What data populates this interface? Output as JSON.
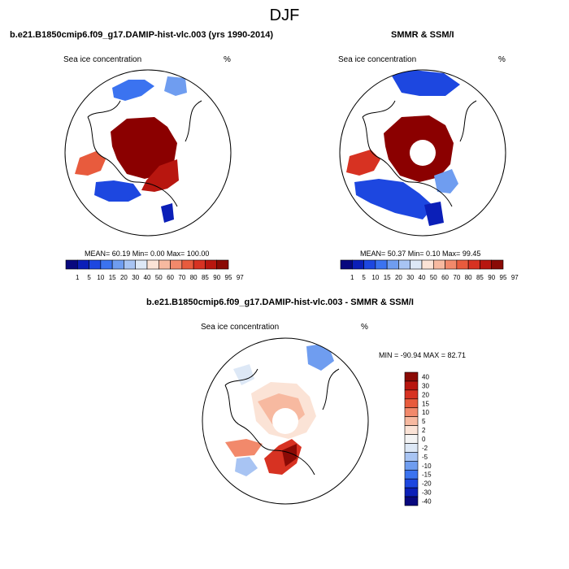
{
  "main_title": "DJF",
  "colors": {
    "hbar": [
      "#08087e",
      "#0b1fb8",
      "#1d47e0",
      "#3b73f0",
      "#6f9df0",
      "#a8c4f3",
      "#dde8f6",
      "#fbe3d6",
      "#f7b9a0",
      "#f2896b",
      "#e85b3d",
      "#d73222",
      "#b8160f",
      "#8a0a05"
    ],
    "vbar": [
      "#8a0a05",
      "#b8160f",
      "#d73222",
      "#e85b3d",
      "#f2896b",
      "#f7b9a0",
      "#fbe3d6",
      "#f4f4f4",
      "#dde8f6",
      "#a8c4f3",
      "#6f9df0",
      "#3b73f0",
      "#1d47e0",
      "#0b1fb8",
      "#08087e"
    ],
    "sea_ice_high": "#8b0000",
    "land_line": "#000000"
  },
  "panels": [
    {
      "title": "b.e21.B1850cmip6.f09_g17.DAMIP-hist-vlc.003 (yrs 1990-2014)",
      "left_label": "Sea ice concentration",
      "right_label": "%",
      "stats": "MEAN=  60.19  Min=   0.00  Max= 100.00",
      "ticks": [
        "1",
        "5",
        "10",
        "15",
        "20",
        "30",
        "40",
        "50",
        "60",
        "70",
        "80",
        "85",
        "90",
        "95",
        "97"
      ]
    },
    {
      "title": "SMMR & SSM/I",
      "left_label": "Sea ice concentration",
      "right_label": "%",
      "stats": "MEAN=  50.37  Min=   0.10  Max=  99.45",
      "ticks": [
        "1",
        "5",
        "10",
        "15",
        "20",
        "30",
        "40",
        "50",
        "60",
        "70",
        "80",
        "85",
        "90",
        "95",
        "97"
      ]
    }
  ],
  "diff_panel": {
    "title": "b.e21.B1850cmip6.f09_g17.DAMIP-hist-vlc.003 - SMMR & SSM/I",
    "left_label": "Sea ice concentration",
    "right_label": "%",
    "minmax": "MIN = -90.94  MAX =  82.71",
    "ticks": [
      "40",
      "30",
      "20",
      "15",
      "10",
      "5",
      "2",
      "0",
      "-2",
      "-5",
      "-10",
      "-15",
      "-20",
      "-30",
      "-40"
    ]
  },
  "chart_data": {
    "type": "heatmap",
    "title": "DJF",
    "season": "DJF",
    "variable": "Sea ice concentration",
    "units": "%",
    "projection": "North polar stereographic",
    "maps": [
      {
        "name": "b.e21.B1850cmip6.f09_g17.DAMIP-hist-vlc.003 (yrs 1990-2014)",
        "mean": 60.19,
        "min": 0.0,
        "max": 100.0,
        "contour_levels": [
          1,
          5,
          10,
          15,
          20,
          30,
          40,
          50,
          60,
          70,
          80,
          85,
          90,
          95,
          97
        ]
      },
      {
        "name": "SMMR & SSM/I",
        "mean": 50.37,
        "min": 0.1,
        "max": 99.45,
        "contour_levels": [
          1,
          5,
          10,
          15,
          20,
          30,
          40,
          50,
          60,
          70,
          80,
          85,
          90,
          95,
          97
        ]
      },
      {
        "name": "b.e21.B1850cmip6.f09_g17.DAMIP-hist-vlc.003 - SMMR & SSM/I",
        "min": -90.94,
        "max": 82.71,
        "contour_levels": [
          -40,
          -30,
          -20,
          -15,
          -10,
          -5,
          -2,
          0,
          2,
          5,
          10,
          15,
          20,
          30,
          40
        ]
      }
    ]
  }
}
